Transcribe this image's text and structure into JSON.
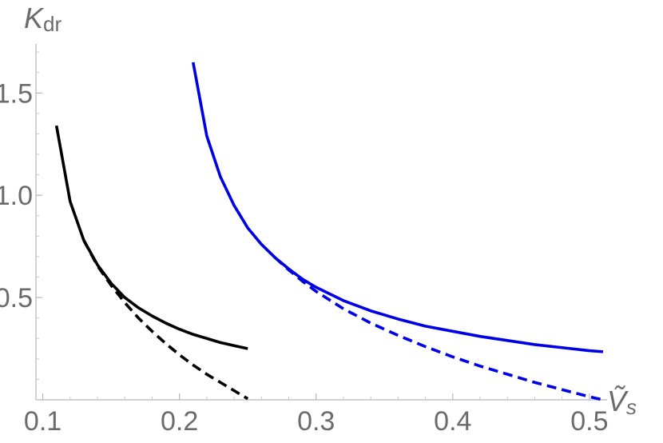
{
  "chart_data": {
    "type": "line",
    "title": "",
    "xlabel": {
      "main": "Ṽ",
      "sub": "s"
    },
    "ylabel": {
      "main": "K",
      "sub": "dr"
    },
    "xlim": [
      0.095,
      0.51
    ],
    "ylim": [
      0.0,
      1.72
    ],
    "x_origin": 0.095,
    "y_origin": 0.0,
    "xticks_major": [
      0.1,
      0.2,
      0.3,
      0.4,
      0.5
    ],
    "xtick_labels": [
      "0.1",
      "0.2",
      "0.3",
      "0.4",
      "0.5"
    ],
    "yticks_major": [
      0.5,
      1.0,
      1.5
    ],
    "ytick_labels": [
      "0.5",
      "1.0",
      "1.5"
    ],
    "grid": false,
    "legend": "none",
    "series": [
      {
        "color": "#000000",
        "dash": "solid",
        "points": [
          [
            0.11,
            1.34
          ],
          [
            0.12,
            0.97
          ],
          [
            0.13,
            0.78
          ],
          [
            0.14,
            0.66
          ],
          [
            0.15,
            0.57
          ],
          [
            0.16,
            0.5
          ],
          [
            0.17,
            0.45
          ],
          [
            0.18,
            0.41
          ],
          [
            0.19,
            0.375
          ],
          [
            0.2,
            0.345
          ],
          [
            0.21,
            0.32
          ],
          [
            0.22,
            0.3
          ],
          [
            0.23,
            0.28
          ],
          [
            0.24,
            0.265
          ],
          [
            0.25,
            0.25
          ]
        ]
      },
      {
        "color": "#000000",
        "dash": "dashed",
        "points": [
          [
            0.13,
            0.78
          ],
          [
            0.14,
            0.655
          ],
          [
            0.15,
            0.56
          ],
          [
            0.16,
            0.475
          ],
          [
            0.17,
            0.4
          ],
          [
            0.18,
            0.335
          ],
          [
            0.19,
            0.275
          ],
          [
            0.2,
            0.22
          ],
          [
            0.21,
            0.17
          ],
          [
            0.22,
            0.125
          ],
          [
            0.23,
            0.085
          ],
          [
            0.24,
            0.045
          ],
          [
            0.25,
            0.005
          ]
        ]
      },
      {
        "color": "#0000e6",
        "dash": "solid",
        "points": [
          [
            0.21,
            1.65
          ],
          [
            0.22,
            1.29
          ],
          [
            0.23,
            1.09
          ],
          [
            0.24,
            0.95
          ],
          [
            0.25,
            0.84
          ],
          [
            0.26,
            0.76
          ],
          [
            0.27,
            0.695
          ],
          [
            0.28,
            0.64
          ],
          [
            0.29,
            0.59
          ],
          [
            0.3,
            0.55
          ],
          [
            0.32,
            0.485
          ],
          [
            0.34,
            0.435
          ],
          [
            0.36,
            0.395
          ],
          [
            0.38,
            0.36
          ],
          [
            0.4,
            0.335
          ],
          [
            0.42,
            0.31
          ],
          [
            0.44,
            0.29
          ],
          [
            0.46,
            0.27
          ],
          [
            0.48,
            0.255
          ],
          [
            0.5,
            0.24
          ],
          [
            0.51,
            0.235
          ]
        ]
      },
      {
        "color": "#0000e6",
        "dash": "dashed",
        "points": [
          [
            0.27,
            0.695
          ],
          [
            0.28,
            0.635
          ],
          [
            0.29,
            0.58
          ],
          [
            0.3,
            0.53
          ],
          [
            0.32,
            0.445
          ],
          [
            0.34,
            0.375
          ],
          [
            0.36,
            0.315
          ],
          [
            0.38,
            0.26
          ],
          [
            0.4,
            0.21
          ],
          [
            0.42,
            0.165
          ],
          [
            0.44,
            0.125
          ],
          [
            0.46,
            0.085
          ],
          [
            0.48,
            0.05
          ],
          [
            0.5,
            0.015
          ],
          [
            0.51,
            0.0
          ]
        ]
      }
    ]
  }
}
